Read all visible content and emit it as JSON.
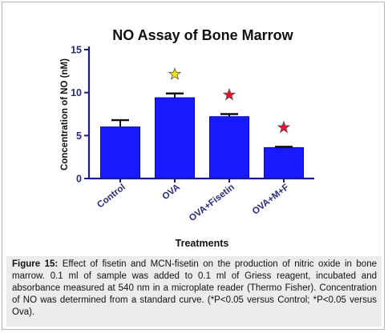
{
  "chart_data": {
    "type": "bar",
    "title": "NO Assay of Bone Marrow",
    "xlabel": "Treatments",
    "ylabel": "Concentration of NO (nM)",
    "ylim": [
      0,
      15
    ],
    "yticks": [
      0,
      5,
      10,
      15
    ],
    "categories": [
      "Control",
      "OVA",
      "OVA+Fisetin",
      "OVA+M+F"
    ],
    "values": [
      6.0,
      9.4,
      7.2,
      3.6
    ],
    "errors": [
      0.8,
      0.5,
      0.3,
      0.1
    ],
    "markers": [
      "",
      "yellow-star",
      "red-star",
      "red-star"
    ],
    "grid": false,
    "legend": "none",
    "colors": {
      "bar": "#1a1aff",
      "bar_edge": "#0000cc",
      "axis": "#1a1a8a",
      "tick_label": "#2a2a7a",
      "text": "#111111",
      "star_yellow": "#f2e400",
      "star_red": "#e8112d"
    }
  },
  "caption": {
    "label": "Figure 15:",
    "text": " Effect of fisetin and MCN-fisetin on the production of nitric oxide in bone marrow. 0.1 ml of sample was added to 0.1 ml of Griess reagent, incubated and absorbance measured at 540 nm in a microplate reader (Thermo Fisher). Concentration of NO was determined from a standard curve. (*P<0.05 versus Control; *P<0.05 versus Ova)."
  }
}
